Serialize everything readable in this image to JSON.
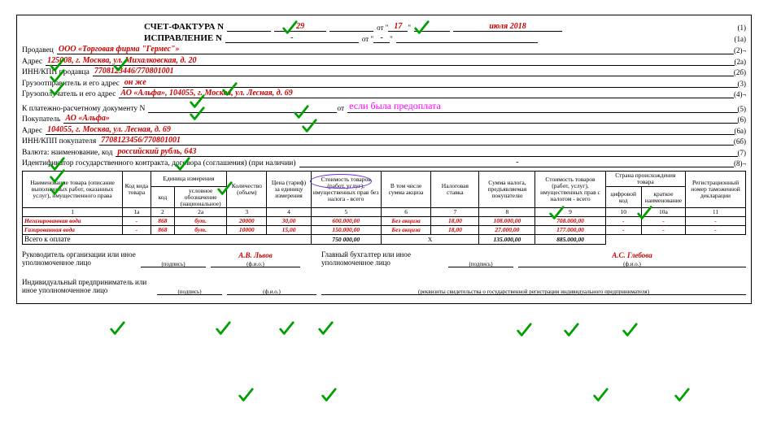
{
  "check_color": "#00a000",
  "title": {
    "doc_label": "СЧЕТ-ФАКТУРА N",
    "doc_num": "29",
    "ot": "от \"",
    "day": "17",
    "quote": "\"",
    "month_year": "июля 2018",
    "r1": "(1)",
    "corr_label": "ИСПРАВЛЕНИЕ N",
    "dash": "-",
    "r2": "(1а)"
  },
  "rows": {
    "seller_l": "Продавец",
    "seller_v": "ООО «Торговая фирма \"Гермес\"»",
    "seller_r": "(2)",
    "addr_l": "Адрес",
    "addr_v": "125008, г. Москва, ул. Михалковская, д. 20",
    "addr_r": "(2а)",
    "inn1_l": "ИНН/КПП продавца",
    "inn1_v": "7708123446/770801001",
    "inn1_r": "(2б)",
    "ship_l": "Грузоотправитель и его адрес",
    "ship_v": "он же",
    "ship_r": "(3)",
    "recv_l": "Грузополучатель и его адрес",
    "recv_v": "АО «Альфа», 104055, г. Москва, ул. Лесная, д. 69",
    "recv_r": "(4)",
    "pay_l": "К платежно-расчетному документу N",
    "pay_r": "(5)",
    "pay_note": "если была предоплата",
    "buyer_l": "Покупатель",
    "buyer_v": "АО «Альфа»",
    "buyer_r": "(6)",
    "addr2_l": "Адрес",
    "addr2_v": "104055, г. Москва, ул. Лесная, д. 69",
    "addr2_r": "(6а)",
    "inn2_l": "ИНН/КПП покупателя",
    "inn2_v": "7708123456/770801001",
    "inn2_r": "(6б)",
    "cur_l": "Валюта: наименование, код",
    "cur_v": "российский рубль, 643",
    "cur_r": "(7)",
    "id_l": "Идентификатор государственного контракта, договора (соглашения) (при наличии)",
    "id_r": "(8)",
    "ot_small": "от"
  },
  "table": {
    "h": {
      "c1": "Наименование товара (описание выполненных работ, оказанных услуг), имущественного права",
      "c1a": "Код вида товара",
      "c2g": "Единица измерения",
      "c2": "код",
      "c2a": "условное обозначение (национальное)",
      "c3": "Количество (объем)",
      "c4": "Цена (тариф) за единицу измерения",
      "c5": "Стоимость товаров (работ, услуг), имущественных прав без налога - всего",
      "c6": "В том числе сумма акциза",
      "c7": "Налоговая ставка",
      "c8": "Сумма налога, предъявляемая покупателю",
      "c9": "Стоимость товаров (работ, услуг), имущественных прав с налогом - всего",
      "c10g": "Страна происхождения товара",
      "c10": "цифровой код",
      "c10a": "краткое наименование",
      "c11": "Регистрационный номер таможенной декларации"
    },
    "nums": [
      "1",
      "1а",
      "2",
      "2а",
      "3",
      "4",
      "5",
      "6",
      "7",
      "8",
      "9",
      "10",
      "10а",
      "11"
    ],
    "r1": {
      "name": "Негазированная вода",
      "code": "-",
      "u1": "868",
      "u2": "бут.",
      "qty": "20000",
      "price": "30,00",
      "cost": "600.000,00",
      "acz": "Без акциза",
      "rate": "18,00",
      "tax": "108.000,00",
      "total": "708.000,00",
      "s1": "-",
      "s2": "-",
      "s3": "-"
    },
    "r2": {
      "name": "Газированная вода",
      "code": "-",
      "u1": "868",
      "u2": "бут.",
      "qty": "10000",
      "price": "15,00",
      "cost": "150.000,00",
      "acz": "Без акциза",
      "rate": "18,00",
      "tax": "27.000,00",
      "total": "177.000,00",
      "s1": "-",
      "s2": "-",
      "s3": "-"
    },
    "total_l": "Всего к оплате",
    "total_cost": "750 000,00",
    "total_x": "X",
    "total_tax": "135.000,00",
    "total_sum": "885.000,00"
  },
  "sign": {
    "head_l": "Руководитель организации или иное уполномоченное лицо",
    "acc_l": "Главный бухгалтер или иное уполномоченное лицо",
    "ip_l": "Индивидуальный предприниматель или иное уполномоченное лицо",
    "sub_sign": "(подпись)",
    "sub_fio": "(ф.и.о.)",
    "sub_req": "(реквизиты свидетельства о государственной регистрации индивидуального предпринимателя)",
    "head_name": "А.В. Львов",
    "acc_name": "А.С. Глебова"
  },
  "checks": [
    [
      324,
      4
    ],
    [
      486,
      4
    ],
    [
      38,
      50
    ],
    [
      38,
      64
    ],
    [
      38,
      80
    ],
    [
      38,
      172
    ],
    [
      38,
      187
    ],
    [
      38,
      202
    ],
    [
      116,
      50
    ],
    [
      250,
      80
    ],
    [
      210,
      95
    ],
    [
      210,
      110
    ],
    [
      338,
      108
    ],
    [
      348,
      125
    ],
    [
      192,
      172
    ],
    [
      244,
      202
    ],
    [
      652,
      232
    ],
    [
      760,
      232
    ],
    [
      112,
      374
    ],
    [
      242,
      374
    ],
    [
      320,
      374
    ],
    [
      368,
      374
    ],
    [
      612,
      376
    ],
    [
      670,
      376
    ],
    [
      742,
      376
    ],
    [
      270,
      456
    ],
    [
      372,
      456
    ],
    [
      706,
      456
    ],
    [
      806,
      456
    ]
  ]
}
